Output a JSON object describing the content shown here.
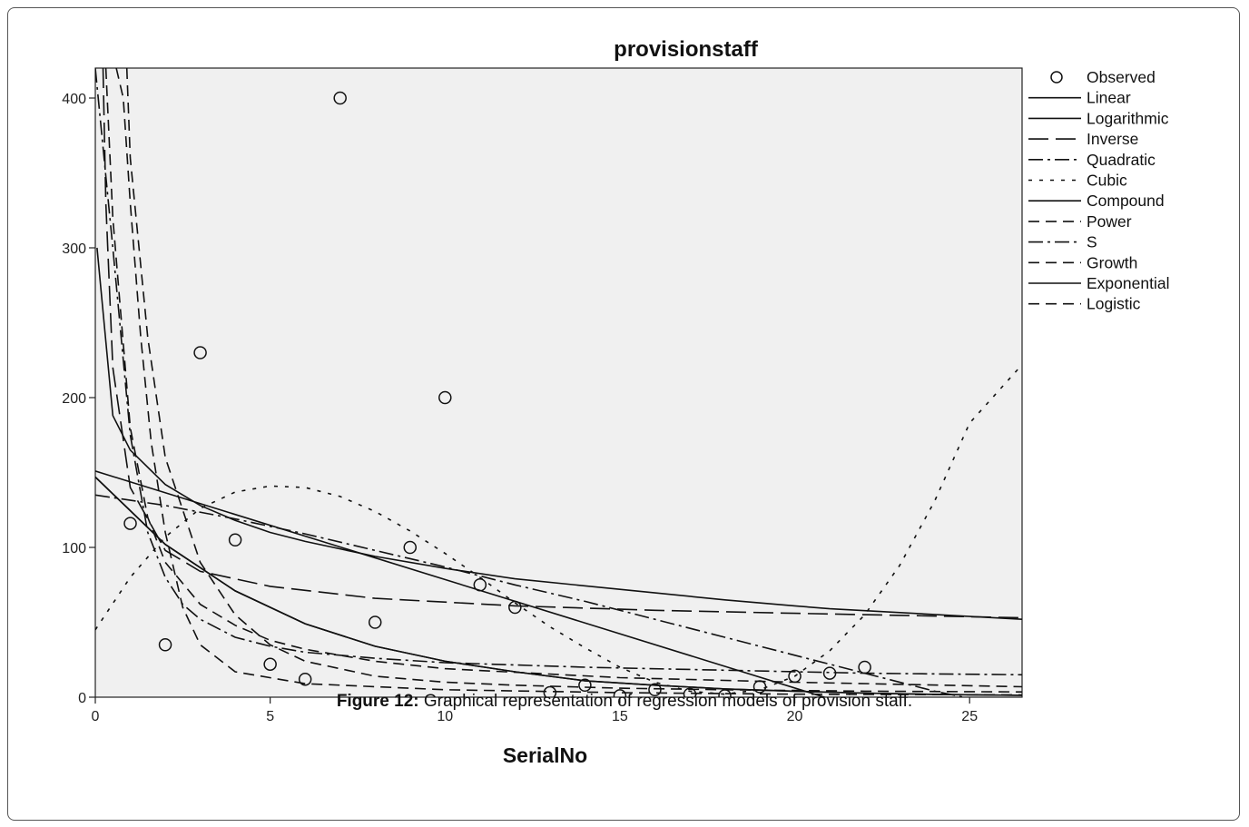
{
  "caption": {
    "label": "Figure 12:",
    "text": "Graphical representation of regression models of provision staff."
  },
  "chart_data": {
    "type": "scatter",
    "title": "provisionstaff",
    "xlabel": "SerialNo",
    "ylabel": "",
    "xlim": [
      0,
      26.5
    ],
    "ylim": [
      0,
      420
    ],
    "x_ticks": [
      0,
      5,
      10,
      15,
      20,
      25
    ],
    "y_ticks": [
      0,
      100,
      200,
      300,
      400
    ],
    "grid": false,
    "legend_position": "right",
    "observed": {
      "name": "Observed",
      "x": [
        1,
        2,
        3,
        4,
        5,
        6,
        7,
        8,
        9,
        10,
        11,
        12,
        13,
        14,
        15,
        16,
        17,
        18,
        19,
        20,
        21,
        22
      ],
      "y": [
        116,
        35,
        230,
        105,
        22,
        12,
        400,
        50,
        100,
        200,
        75,
        60,
        3,
        8,
        1,
        5,
        2,
        1,
        7,
        14,
        16,
        20
      ]
    },
    "series": [
      {
        "name": "Linear",
        "dash": "solid",
        "x": [
          0,
          26.5
        ],
        "y": [
          151,
          -41
        ]
      },
      {
        "name": "Logarithmic",
        "dash": "solid",
        "x": [
          0.05,
          0.5,
          1,
          2,
          3,
          4,
          5,
          6,
          8,
          10,
          12,
          15,
          18,
          20,
          21,
          26.5
        ],
        "y": [
          300,
          188,
          165,
          142,
          128,
          118,
          110,
          104,
          94,
          86,
          79,
          72,
          65,
          61,
          59,
          52
        ]
      },
      {
        "name": "Inverse",
        "dash": "longdash",
        "x": [
          0.22,
          0.3,
          0.5,
          1,
          2,
          3,
          5,
          8,
          12,
          16,
          20,
          26.5
        ],
        "y": [
          420,
          330,
          220,
          140,
          98,
          84,
          74,
          66,
          61,
          58,
          56,
          53
        ]
      },
      {
        "name": "Quadratic",
        "dash": "dashdot",
        "x": [
          0,
          2,
          4,
          6,
          8,
          10,
          12,
          14,
          16,
          18,
          20,
          22,
          24,
          26.5
        ],
        "y": [
          135,
          128,
          119,
          109,
          98,
          87,
          75,
          64,
          52,
          40,
          28,
          16,
          4,
          -8
        ]
      },
      {
        "name": "Cubic",
        "dash": "dotted",
        "x": [
          0,
          1,
          2,
          3,
          4,
          5,
          6,
          7,
          8,
          9,
          10,
          11,
          12,
          13,
          14,
          15,
          16,
          17,
          18,
          19,
          20,
          21,
          22,
          23,
          24,
          25,
          26.5
        ],
        "y": [
          45,
          80,
          107,
          126,
          137,
          141,
          140,
          134,
          124,
          111,
          96,
          80,
          63,
          47,
          33,
          20,
          10,
          4,
          2,
          5,
          14,
          31,
          55,
          88,
          131,
          183,
          222
        ]
      },
      {
        "name": "Compound",
        "dash": "solid",
        "x": [
          0,
          2,
          4,
          6,
          8,
          10,
          12,
          14,
          16,
          18,
          20,
          22,
          24,
          26.5
        ],
        "y": [
          147,
          102,
          71,
          49,
          34,
          24,
          17,
          11,
          8,
          5.5,
          4,
          2.7,
          1.9,
          1.2
        ]
      },
      {
        "name": "Power",
        "dash": "dashed",
        "x": [
          0.3,
          0.5,
          1,
          1.5,
          2,
          3,
          4,
          5,
          6,
          8,
          10,
          15,
          20,
          26.5
        ],
        "y": [
          420,
          320,
          180,
          120,
          90,
          62,
          48,
          38,
          32,
          24,
          19,
          13,
          10,
          7
        ]
      },
      {
        "name": "S",
        "dash": "dashdot",
        "x": [
          0,
          0.5,
          1,
          1.5,
          2,
          2.5,
          3,
          4,
          5,
          6,
          8,
          10,
          14,
          18,
          22,
          26.5
        ],
        "y": [
          420,
          300,
          175,
          110,
          80,
          62,
          52,
          40,
          34,
          30,
          26,
          23,
          20,
          18,
          16,
          15
        ]
      },
      {
        "name": "Growth",
        "dash": "dashed",
        "x": [
          0.9,
          1,
          1.5,
          2,
          3,
          4,
          5,
          6,
          8,
          10,
          12,
          15,
          18,
          20,
          22,
          26.5
        ],
        "y": [
          420,
          360,
          240,
          160,
          90,
          55,
          35,
          24,
          14,
          10,
          8,
          6,
          5,
          4.5,
          4,
          3.5
        ]
      },
      {
        "name": "Exponential",
        "dash": "solid",
        "x": [
          0,
          2,
          4,
          6,
          8,
          10,
          12,
          14,
          16,
          18,
          20,
          22,
          24,
          26.5
        ],
        "y": [
          147,
          102,
          71,
          49,
          34,
          24,
          17,
          11,
          8,
          5.5,
          4,
          2.7,
          1.9,
          1.2
        ]
      },
      {
        "name": "Logistic",
        "dash": "dashed",
        "x": [
          0.6,
          0.8,
          1,
          1.3,
          1.6,
          2,
          2.5,
          3,
          4,
          6,
          10,
          15,
          20,
          26.5
        ],
        "y": [
          420,
          400,
          330,
          240,
          170,
          110,
          60,
          35,
          17,
          9,
          5,
          3,
          2,
          1.5
        ]
      }
    ]
  }
}
